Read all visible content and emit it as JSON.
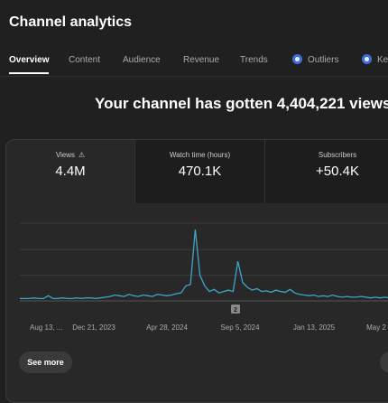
{
  "header": {
    "title": "Channel analytics"
  },
  "tabs": [
    {
      "label": "Overview",
      "active": true,
      "icon": ""
    },
    {
      "label": "Content",
      "active": false,
      "icon": ""
    },
    {
      "label": "Audience",
      "active": false,
      "icon": ""
    },
    {
      "label": "Revenue",
      "active": false,
      "icon": ""
    },
    {
      "label": "Trends",
      "active": false,
      "icon": ""
    },
    {
      "label": "Outliers",
      "active": false,
      "icon": "blue-circle-icon"
    },
    {
      "label": "Ke",
      "active": false,
      "icon": "blue-circle-icon"
    }
  ],
  "headline": "Your channel has gotten 4,404,221 views",
  "metrics": {
    "views": {
      "label": "Views",
      "value": "4.4M",
      "icon": "warning-icon"
    },
    "watch_time": {
      "label": "Watch time (hours)",
      "value": "470.1K"
    },
    "subscribers": {
      "label": "Subscribers",
      "value": "+50.4K"
    }
  },
  "chart_data": {
    "type": "line",
    "x_tick_labels": [
      "Aug 13, ...",
      "Dec 21, 2023",
      "Apr 28, 2024",
      "Sep 5, 2024",
      "Jan 13, 2025",
      "May 2"
    ],
    "marker": "2",
    "series": [
      {
        "values": [
          0.02,
          0.02,
          0.02,
          0.03,
          0.02,
          0.02,
          0.06,
          0.02,
          0.02,
          0.03,
          0.02,
          0.02,
          0.03,
          0.02,
          0.03,
          0.03,
          0.02,
          0.03,
          0.04,
          0.05,
          0.07,
          0.06,
          0.05,
          0.08,
          0.06,
          0.05,
          0.07,
          0.06,
          0.05,
          0.08,
          0.07,
          0.06,
          0.07,
          0.09,
          0.1,
          0.2,
          0.22,
          1.0,
          0.35,
          0.2,
          0.12,
          0.15,
          0.1,
          0.12,
          0.14,
          0.12,
          0.55,
          0.25,
          0.18,
          0.14,
          0.16,
          0.12,
          0.13,
          0.11,
          0.14,
          0.12,
          0.11,
          0.15,
          0.1,
          0.08,
          0.07,
          0.06,
          0.07,
          0.05,
          0.06,
          0.05,
          0.07,
          0.05,
          0.04,
          0.05,
          0.04,
          0.04,
          0.05,
          0.04,
          0.03,
          0.04,
          0.03,
          0.04,
          0.03,
          0.04
        ]
      }
    ],
    "color": "#3ea6c8"
  },
  "actions": {
    "see_more": "See more"
  }
}
